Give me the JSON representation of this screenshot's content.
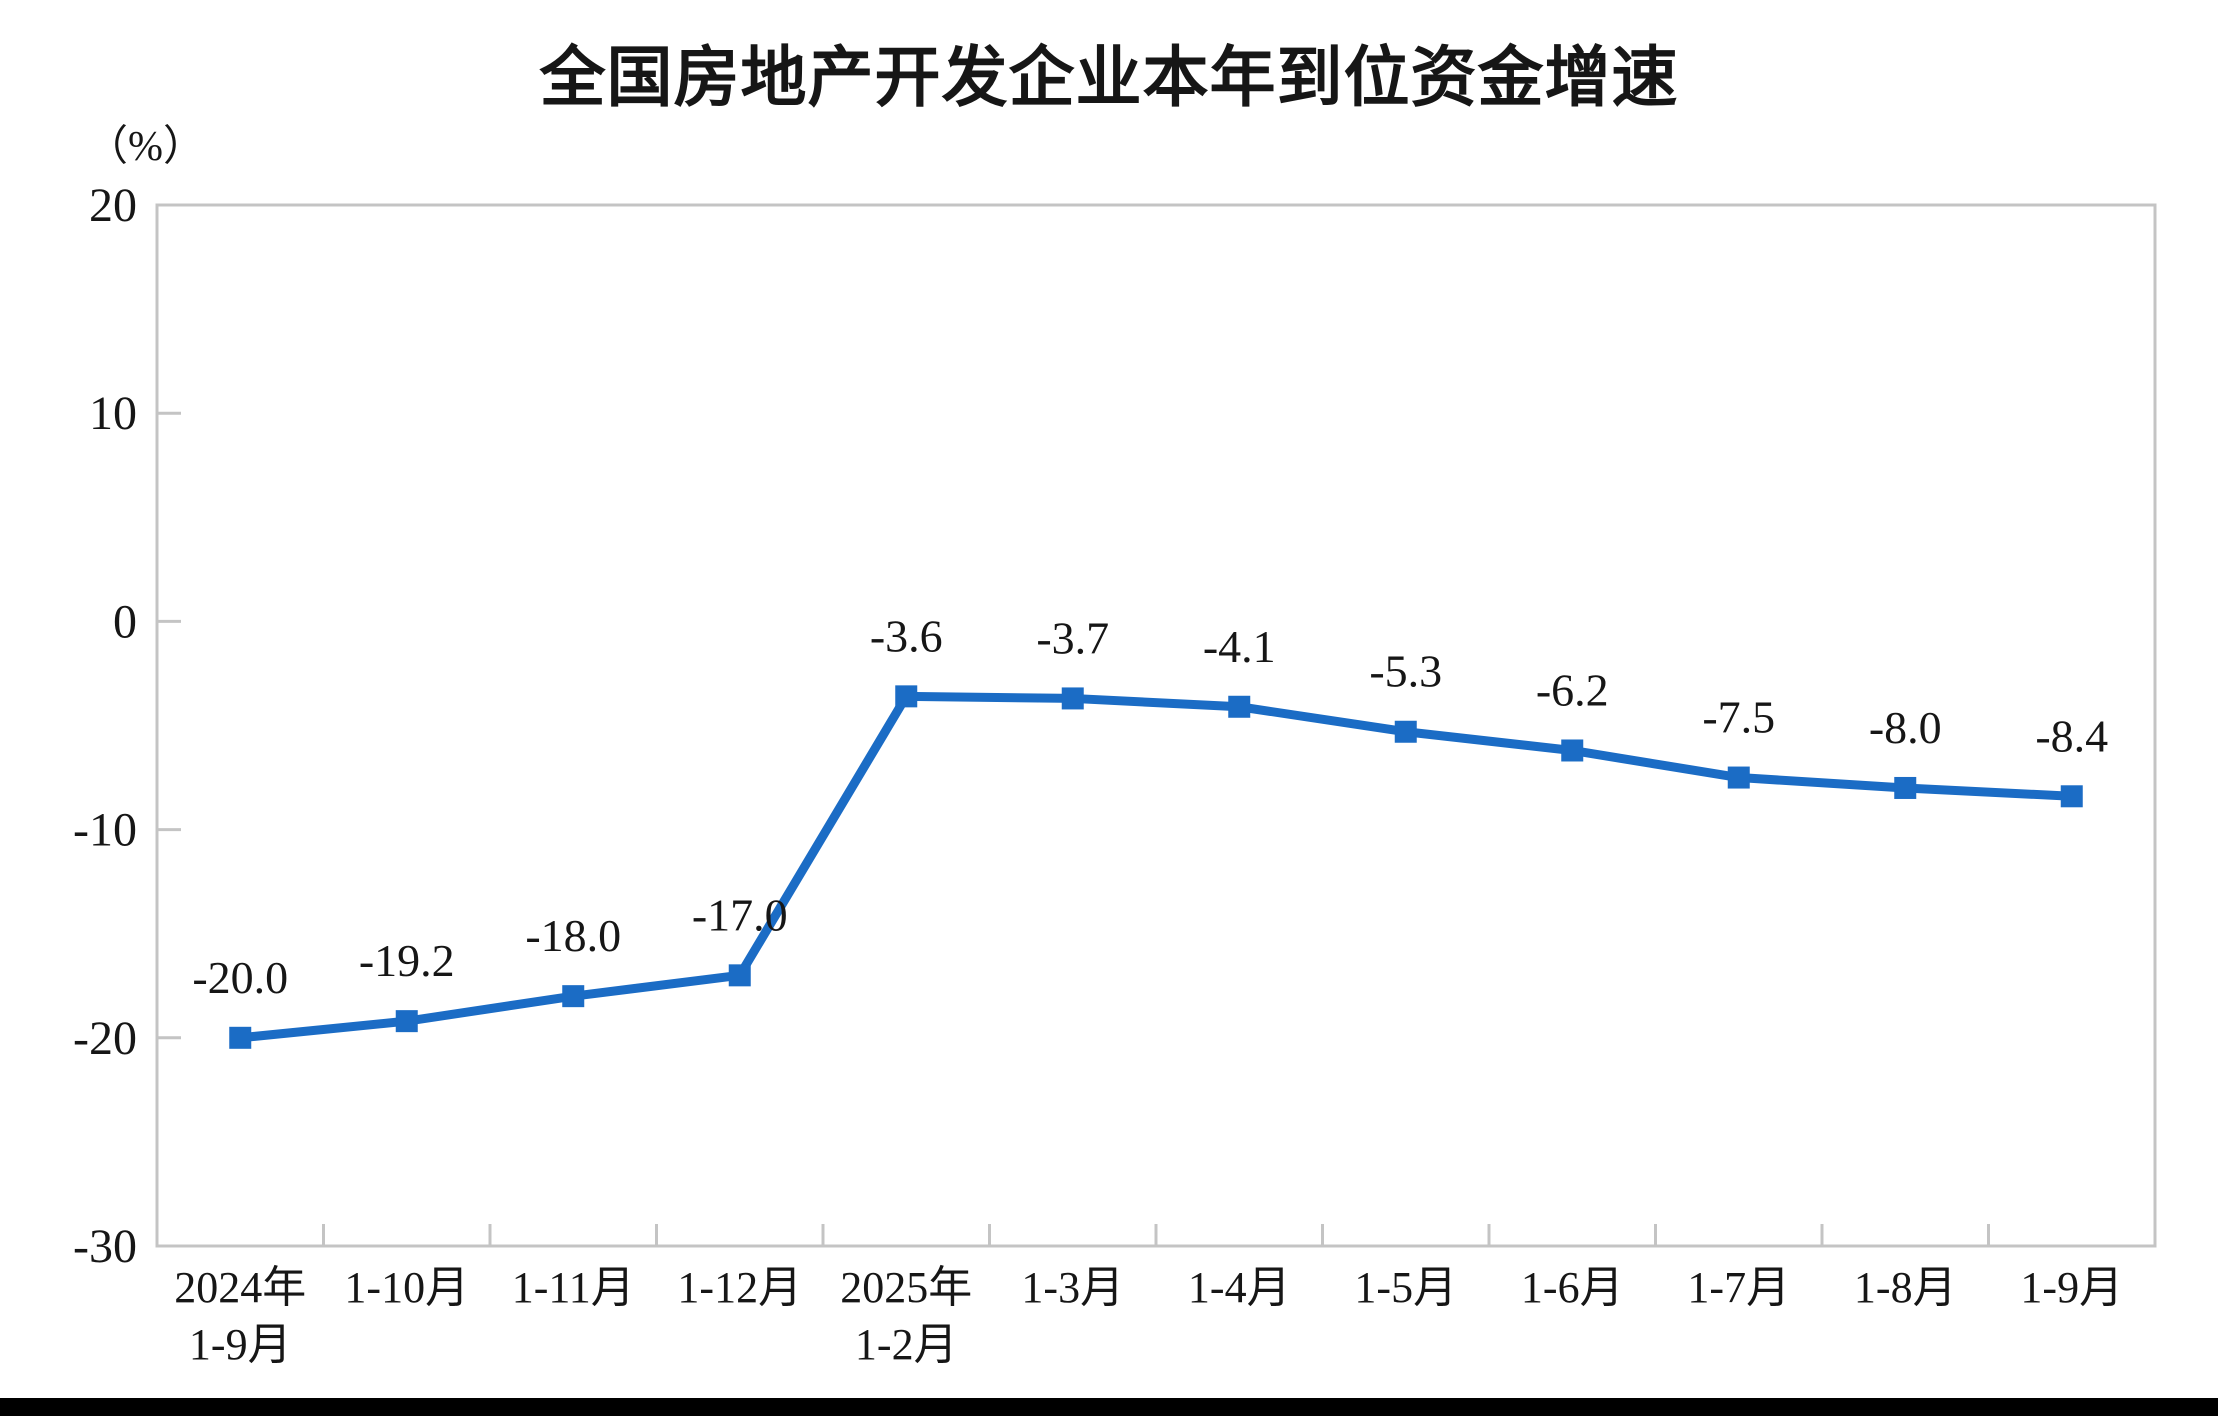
{
  "page": {
    "title": "全国房地产开发企业本年到位资金增速",
    "unit_label": "（%）"
  },
  "chart_data": {
    "type": "line",
    "title": "全国房地产开发企业本年到位资金增速",
    "ylabel": "（%）",
    "xlabel": "",
    "categories": [
      [
        "2024年",
        "1-9月"
      ],
      [
        "1-10月"
      ],
      [
        "1-11月"
      ],
      [
        "1-12月"
      ],
      [
        "2025年",
        "1-2月"
      ],
      [
        "1-3月"
      ],
      [
        "1-4月"
      ],
      [
        "1-5月"
      ],
      [
        "1-6月"
      ],
      [
        "1-7月"
      ],
      [
        "1-8月"
      ],
      [
        "1-9月"
      ]
    ],
    "values": [
      -20.0,
      -19.2,
      -18.0,
      -17.0,
      -3.6,
      -3.7,
      -4.1,
      -5.3,
      -6.2,
      -7.5,
      -8.0,
      -8.4
    ],
    "data_labels": [
      "-20.0",
      "-19.2",
      "-18.0",
      "-17.0",
      "-3.6",
      "-3.7",
      "-4.1",
      "-5.3",
      "-6.2",
      "-7.5",
      "-8.0",
      "-8.4"
    ],
    "y_ticks": [
      "20",
      "10",
      "0",
      "-10",
      "-20",
      "-30"
    ],
    "y_tick_values": [
      20,
      10,
      0,
      -10,
      -20,
      -30
    ],
    "ylim": [
      -30,
      20
    ],
    "grid": false,
    "legend": false,
    "series_color": "#1B6CC5",
    "axis_color": "#C4C4C4",
    "text_color": "#161616",
    "marker": "square"
  }
}
